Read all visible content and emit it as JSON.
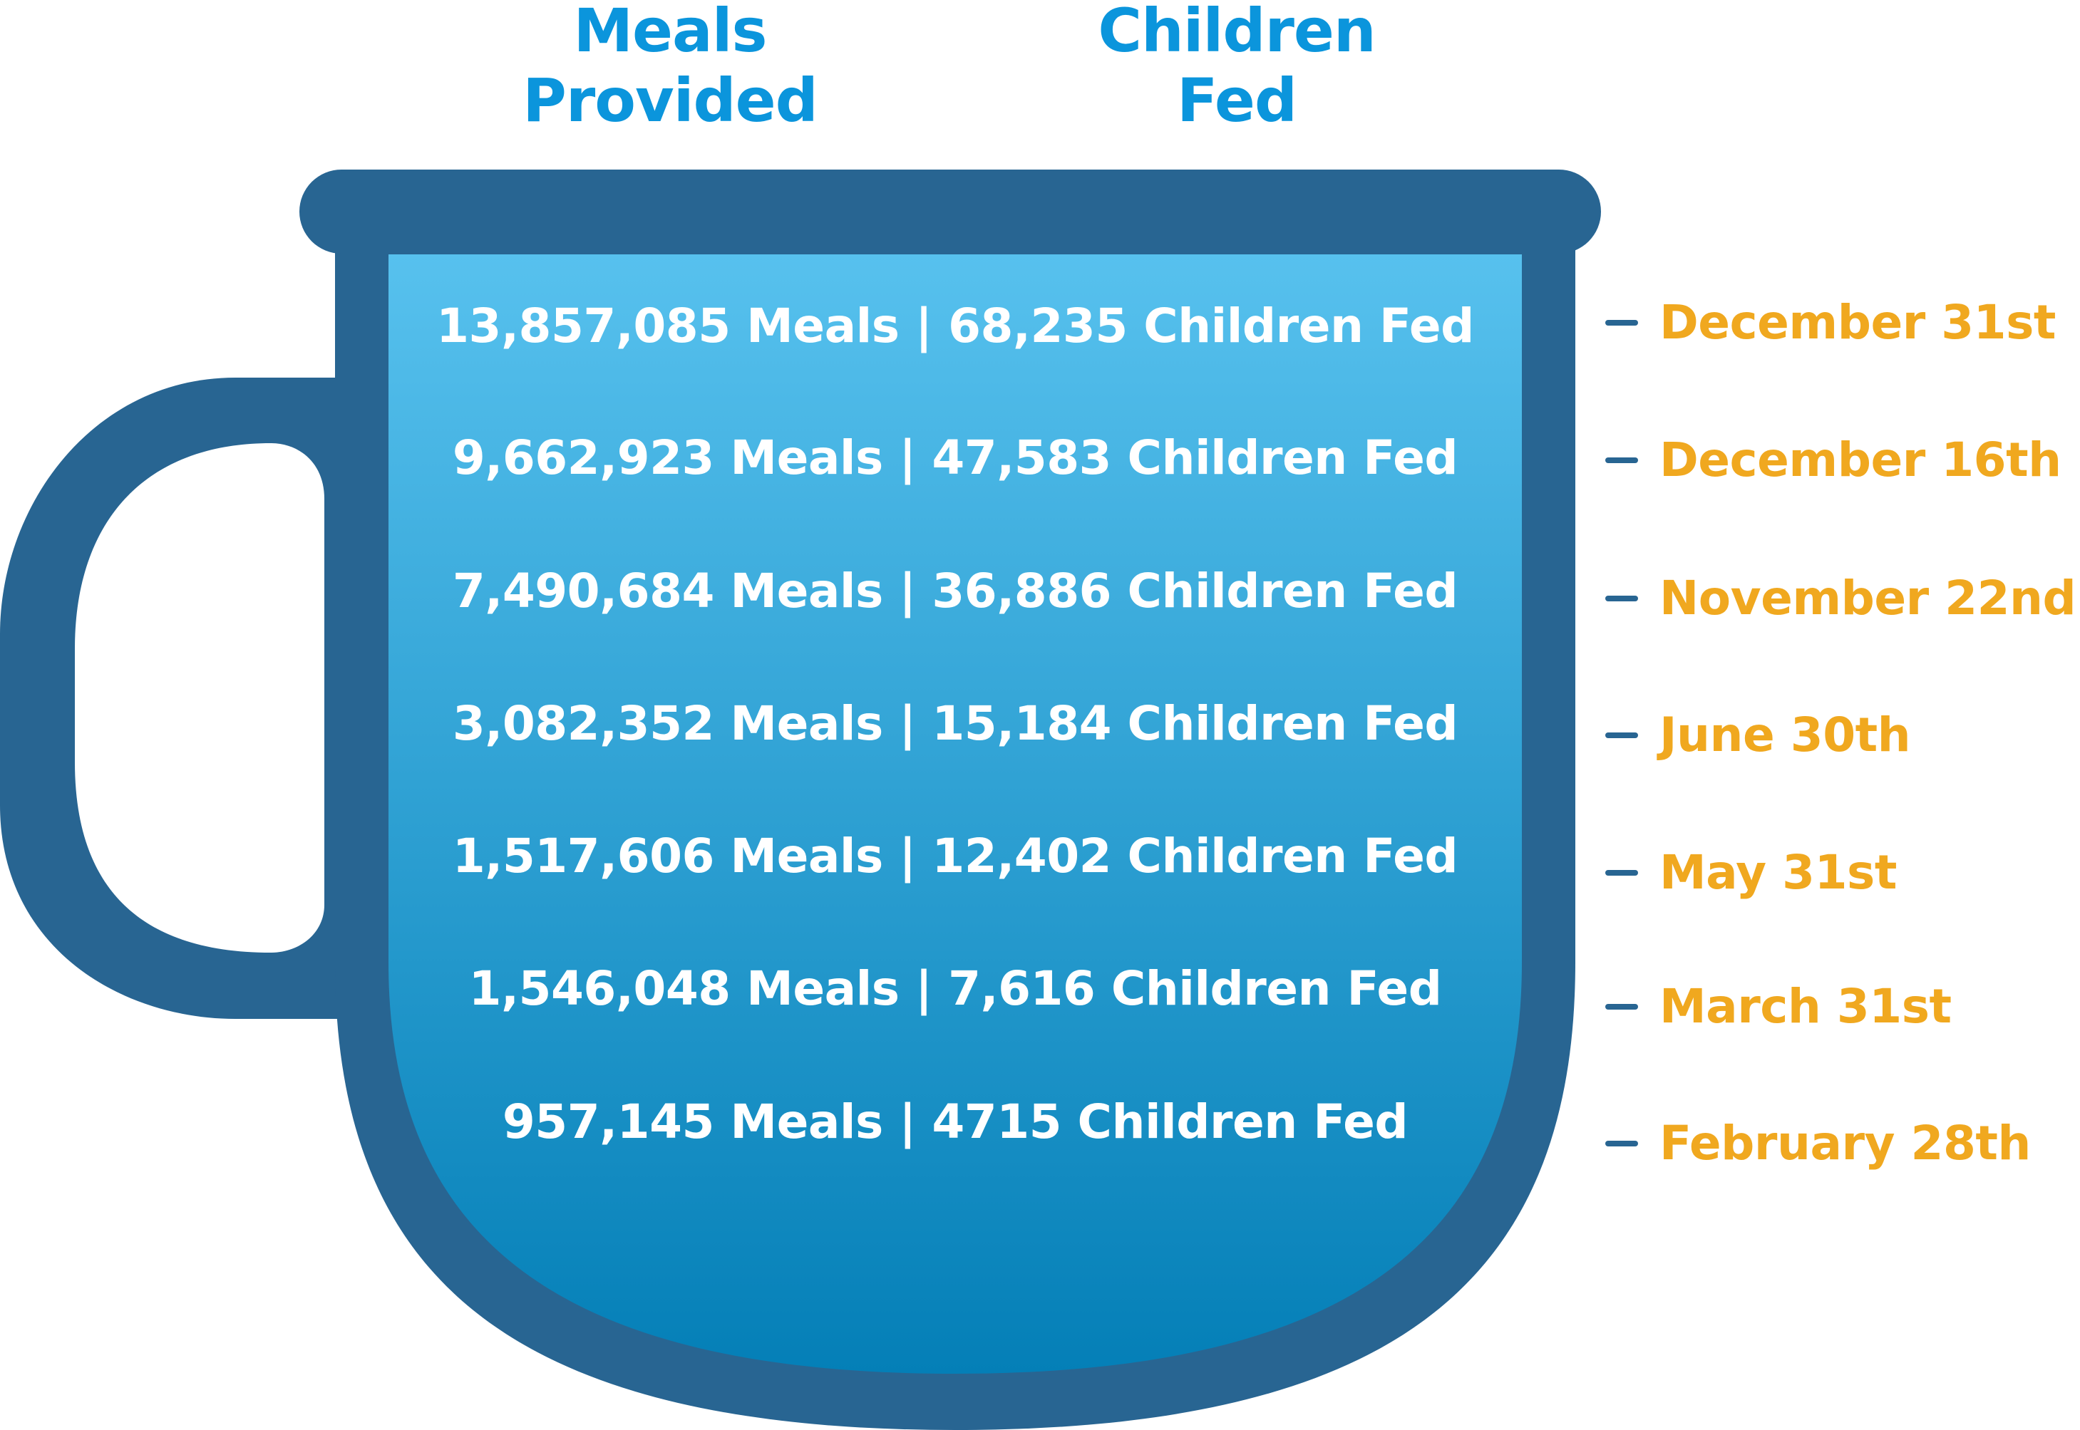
{
  "colors": {
    "mug_outline": "#286592",
    "liquid_top": "#57c1ee",
    "liquid_bottom": "#047fb7",
    "header_text": "#0b95dc",
    "date_text": "#f0a81f",
    "row_text": "#ffffff"
  },
  "headers": {
    "meals": [
      "Meals",
      "Provided"
    ],
    "children": [
      "Children",
      "Fed"
    ]
  },
  "rows": [
    {
      "text": "13,857,085 Meals | 68,235 Children Fed",
      "meals": 13857085,
      "children": 68235,
      "date": "December 31st"
    },
    {
      "text": "9,662,923 Meals | 47,583 Children Fed",
      "meals": 9662923,
      "children": 47583,
      "date": "December 16th"
    },
    {
      "text": "7,490,684 Meals | 36,886 Children Fed",
      "meals": 7490684,
      "children": 36886,
      "date": "November 22nd"
    },
    {
      "text": "3,082,352 Meals | 15,184 Children Fed",
      "meals": 3082352,
      "children": 15184,
      "date": "June 30th"
    },
    {
      "text": "1,517,606 Meals | 12,402 Children Fed",
      "meals": 1517606,
      "children": 12402,
      "date": "May 31st"
    },
    {
      "text": "1,546,048 Meals | 7,616 Children Fed",
      "meals": 1546048,
      "children": 7616,
      "date": "March 31st"
    },
    {
      "text": "957,145 Meals | 4715 Children Fed",
      "meals": 957145,
      "children": 4715,
      "date": "February 28th"
    }
  ]
}
